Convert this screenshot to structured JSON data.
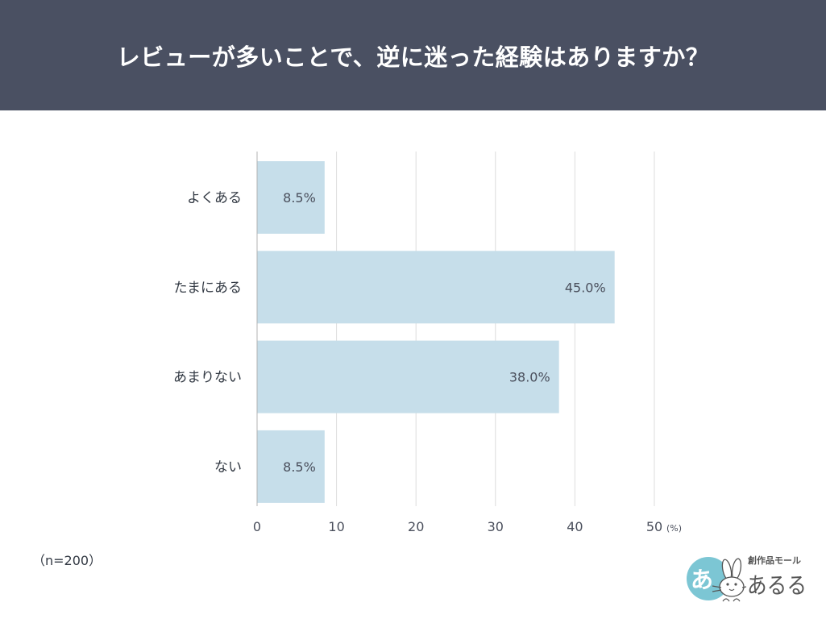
{
  "chart_data": {
    "type": "bar",
    "orientation": "horizontal",
    "title": "レビューが多いことで、逆に迷った経験はありますか？",
    "categories": [
      "よくある",
      "たまにある",
      "あまりない",
      "ない"
    ],
    "values": [
      8.5,
      45.0,
      38.0,
      8.5
    ],
    "data_labels": [
      "8.5%",
      "45.0%",
      "38.0%",
      "8.5%"
    ],
    "xlabel": "(%)",
    "xlim": [
      0,
      50
    ],
    "xticks": [
      0,
      10,
      20,
      30,
      40,
      50
    ],
    "grid": true,
    "note": "（n=200）"
  },
  "colors": {
    "header": "#4a5062",
    "title_text": "#ffffff",
    "bar": "#c6deea",
    "grid": "#dcdcdc",
    "axis": "#b3b3b3",
    "text": "#4a4f5c"
  },
  "logo": {
    "badge": "あ",
    "tagline": "創作品モール",
    "name": "あるる",
    "icon": "rabbit-icon",
    "colors": {
      "badge": "#7cc6d4",
      "ink": "#555555"
    }
  }
}
